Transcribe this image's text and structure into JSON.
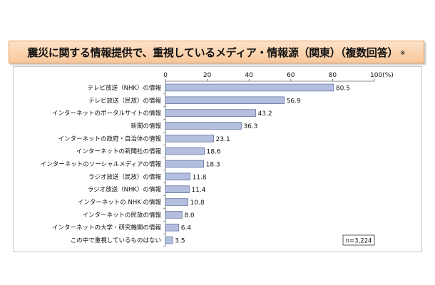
{
  "title": {
    "text": "震災に関する情報提供で、重視しているメディア・情報源（関東）（複数回答）",
    "note": "※"
  },
  "sample_note": "n=3,224",
  "colors": {
    "bar_fill": "#b4bedf",
    "bar_stroke": "#5a6a9a",
    "title_bg": "#f8c79a"
  },
  "chart_data": {
    "type": "bar",
    "orientation": "horizontal",
    "categories": [
      "テレビ放送（NHK）の情報",
      "テレビ放送（民放）の情報",
      "インターネットのポータルサイトの情報",
      "新聞の情報",
      "インターネットの政府・自治体の情報",
      "インターネットの新聞社の情報",
      "インターネットのソーシャルメディアの情報",
      "ラジオ放送（民放）の情報",
      "ラジオ放送（NHK）の情報",
      "インターネットの NHK の情報",
      "インターネットの民放の情報",
      "インターネットの大学・研究機関の情報",
      "この中で重視しているものはない"
    ],
    "values": [
      80.5,
      56.9,
      43.2,
      36.3,
      23.1,
      18.6,
      18.3,
      11.8,
      11.4,
      10.8,
      8.0,
      6.4,
      3.5
    ],
    "value_labels": [
      "80.5",
      "56.9",
      "43.2",
      "36.3",
      "23.1",
      "18.6",
      "18.3",
      "11.8",
      "11.4",
      "10.8",
      "8.0",
      "6.4",
      "3.5"
    ],
    "xlim": [
      0,
      100
    ],
    "xticks": [
      0,
      20,
      40,
      60,
      80,
      100
    ],
    "xtick_labels": [
      "0",
      "20",
      "40",
      "60",
      "80",
      "100(%)"
    ],
    "grid": false,
    "legend": "none"
  }
}
